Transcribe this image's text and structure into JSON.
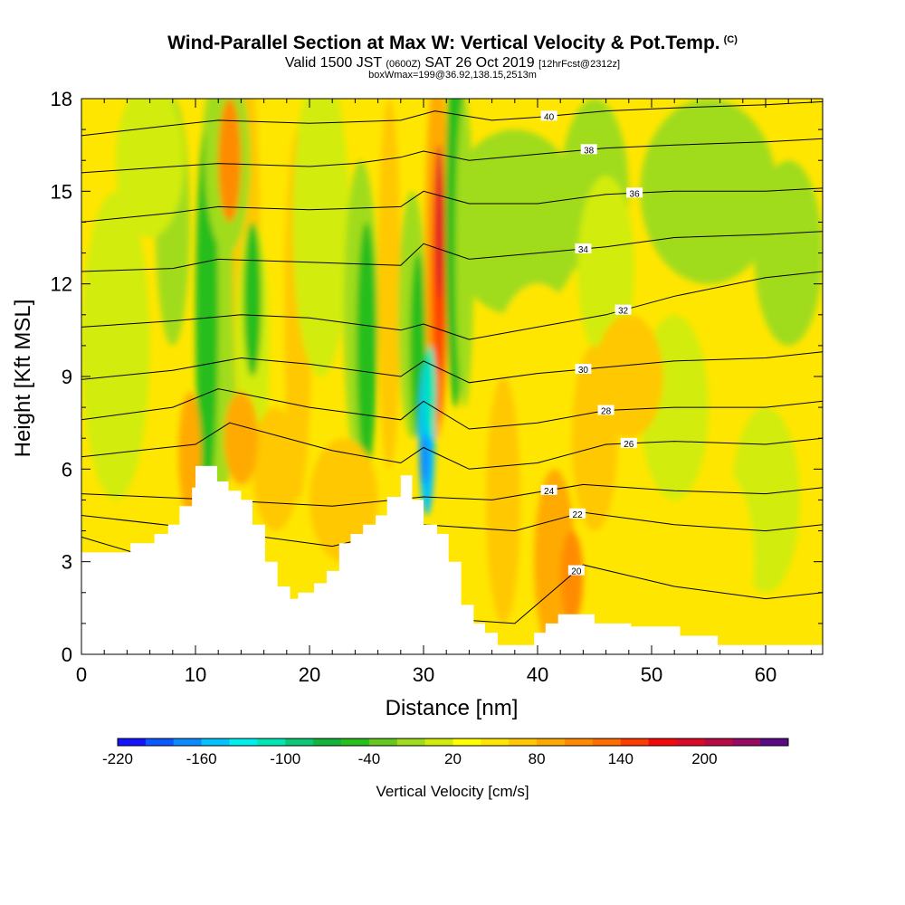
{
  "header": {
    "title": "Wind-Parallel Section at Max W: Vertical Velocity & Pot.Temp.",
    "title_mark": "(C)",
    "valid_prefix": "Valid 1500 JST",
    "valid_z": "(0600Z)",
    "valid_date": "SAT 26 Oct 2019",
    "valid_fcst": "[12hrFcst@2312z]",
    "box_info": "boxWmax=199@36.92,138.15,2513m"
  },
  "chart_data": {
    "type": "heatmap",
    "xlabel": "Distance [nm]",
    "ylabel": "Height [Kft MSL]",
    "xlim": [
      0,
      65
    ],
    "ylim": [
      0,
      18
    ],
    "x_ticks": [
      0,
      10,
      20,
      30,
      40,
      50,
      60
    ],
    "y_ticks": [
      0,
      3,
      6,
      9,
      12,
      15,
      18
    ],
    "colorbar": {
      "title": "Vertical Velocity [cm/s]",
      "tick_labels": [
        "-220",
        "-160",
        "-100",
        "-40",
        "20",
        "80",
        "140",
        "200"
      ],
      "colors": [
        "#1414ff",
        "#0a5aff",
        "#0a8cff",
        "#00c3ff",
        "#00f0f0",
        "#00e6b4",
        "#0ac878",
        "#14b43c",
        "#28be1e",
        "#64c81e",
        "#a0dc1e",
        "#d2ec0a",
        "#ffff00",
        "#ffe600",
        "#ffc800",
        "#ffaa00",
        "#ff8c00",
        "#ff6e00",
        "#ff3c00",
        "#f50a0a",
        "#dc0a28",
        "#b90a46",
        "#960a64",
        "#5a0a82"
      ]
    },
    "theta_contours": [
      {
        "label": "20",
        "x": [
          0,
          20,
          30,
          38,
          44,
          52,
          60,
          65
        ],
        "y": [
          3.8,
          1.6,
          1.2,
          1.0,
          2.9,
          2.2,
          1.8,
          2.0
        ],
        "label_x": 43.4
      },
      {
        "label": "22",
        "x": [
          0,
          12,
          22,
          30,
          38,
          44,
          52,
          60,
          65
        ],
        "y": [
          4.5,
          4.0,
          3.5,
          4.2,
          4.0,
          4.6,
          4.2,
          4.0,
          4.2
        ],
        "label_x": 43.5
      },
      {
        "label": "24",
        "x": [
          0,
          12,
          22,
          30,
          36,
          44,
          52,
          60,
          65
        ],
        "y": [
          5.2,
          5.0,
          4.8,
          5.1,
          5.0,
          5.5,
          5.3,
          5.2,
          5.4
        ],
        "label_x": 41.0
      },
      {
        "label": "26",
        "x": [
          0,
          10,
          13,
          22,
          28,
          30,
          34,
          40,
          46,
          52,
          60,
          65
        ],
        "y": [
          6.4,
          6.8,
          7.5,
          6.6,
          6.2,
          6.7,
          6.0,
          6.2,
          6.8,
          6.9,
          6.8,
          7.0
        ],
        "label_x": 48.0
      },
      {
        "label": "28",
        "x": [
          0,
          8,
          12,
          20,
          28,
          30,
          34,
          40,
          46,
          52,
          60,
          65
        ],
        "y": [
          7.6,
          8.0,
          8.6,
          8.0,
          7.6,
          8.2,
          7.3,
          7.5,
          7.9,
          8.0,
          8.0,
          8.2
        ],
        "label_x": 46.0
      },
      {
        "label": "30",
        "x": [
          0,
          8,
          14,
          20,
          28,
          30,
          34,
          40,
          46,
          52,
          60,
          65
        ],
        "y": [
          8.9,
          9.2,
          9.6,
          9.4,
          9.0,
          9.5,
          8.8,
          9.1,
          9.3,
          9.5,
          9.6,
          9.8
        ],
        "label_x": 44.0
      },
      {
        "label": "32",
        "x": [
          0,
          8,
          14,
          20,
          28,
          30,
          34,
          40,
          46,
          52,
          60,
          65
        ],
        "y": [
          10.6,
          10.8,
          11.0,
          10.9,
          10.5,
          10.7,
          10.2,
          10.6,
          11.0,
          11.6,
          12.2,
          12.4
        ],
        "label_x": 47.5
      },
      {
        "label": "34",
        "x": [
          0,
          8,
          12,
          20,
          28,
          30,
          34,
          40,
          46,
          52,
          60,
          65
        ],
        "y": [
          12.4,
          12.5,
          12.8,
          12.7,
          12.6,
          13.3,
          12.8,
          13.0,
          13.2,
          13.5,
          13.6,
          13.7
        ],
        "label_x": 44.0
      },
      {
        "label": "36",
        "x": [
          0,
          8,
          12,
          20,
          28,
          30,
          34,
          40,
          46,
          52,
          60,
          65
        ],
        "y": [
          14.0,
          14.3,
          14.5,
          14.4,
          14.5,
          15.0,
          14.6,
          14.6,
          14.9,
          15.0,
          15.0,
          15.1
        ],
        "label_x": 48.5
      },
      {
        "label": "38",
        "x": [
          0,
          8,
          12,
          20,
          24,
          28,
          30,
          34,
          40,
          46,
          52,
          60,
          65
        ],
        "y": [
          15.6,
          15.8,
          15.9,
          15.8,
          15.9,
          16.1,
          16.3,
          16.0,
          16.2,
          16.4,
          16.5,
          16.6,
          16.7
        ],
        "label_x": 44.5
      },
      {
        "label": "40",
        "x": [
          0,
          7,
          12,
          20,
          28,
          31,
          36,
          40,
          46,
          52,
          60,
          65
        ],
        "y": [
          16.8,
          17.1,
          17.3,
          17.2,
          17.3,
          17.6,
          17.3,
          17.4,
          17.6,
          17.7,
          17.8,
          17.9
        ],
        "label_x": 41.0
      }
    ],
    "terrain": {
      "x": [
        0,
        4.3,
        4.3,
        6.4,
        6.4,
        7.6,
        7.6,
        8.6,
        8.6,
        9.7,
        9.7,
        10.0,
        10.0,
        11.9,
        11.9,
        12.9,
        12.9,
        14.0,
        14.0,
        15.0,
        15.0,
        16.1,
        16.1,
        17.2,
        17.2,
        18.3,
        18.3,
        19.0,
        19.0,
        20.4,
        20.4,
        21.5,
        21.5,
        22.6,
        22.6,
        23.6,
        23.6,
        24.7,
        24.7,
        25.8,
        25.8,
        26.8,
        26.8,
        28.0,
        28.0,
        29.0,
        29.0,
        30.0,
        30.0,
        31.2,
        31.2,
        32.2,
        32.2,
        33.3,
        33.3,
        34.4,
        34.4,
        35.4,
        35.4,
        36.5,
        36.5,
        39.7,
        39.7,
        40.7,
        40.7,
        41.8,
        41.8,
        45.0,
        45.0,
        48.2,
        48.2,
        52.5,
        52.5,
        55.8,
        55.8,
        65
      ],
      "y": [
        3.3,
        3.3,
        3.6,
        3.6,
        3.9,
        3.9,
        4.2,
        4.2,
        4.8,
        4.8,
        5.4,
        5.4,
        6.1,
        6.1,
        5.6,
        5.6,
        5.3,
        5.3,
        5.0,
        5.0,
        4.2,
        4.2,
        3.0,
        3.0,
        2.2,
        2.2,
        1.8,
        1.8,
        2.0,
        2.0,
        2.3,
        2.3,
        2.7,
        2.7,
        3.6,
        3.6,
        3.9,
        3.9,
        4.2,
        4.2,
        4.5,
        4.5,
        5.1,
        5.1,
        5.8,
        5.8,
        5.0,
        5.0,
        4.2,
        4.2,
        3.9,
        3.9,
        3.0,
        3.0,
        1.6,
        1.6,
        1.0,
        1.0,
        0.7,
        0.7,
        0.3,
        0.3,
        0.7,
        0.7,
        1.0,
        1.0,
        1.3,
        1.3,
        1.0,
        1.0,
        0.9,
        0.9,
        0.6,
        0.6,
        0.3,
        0.3
      ]
    }
  }
}
